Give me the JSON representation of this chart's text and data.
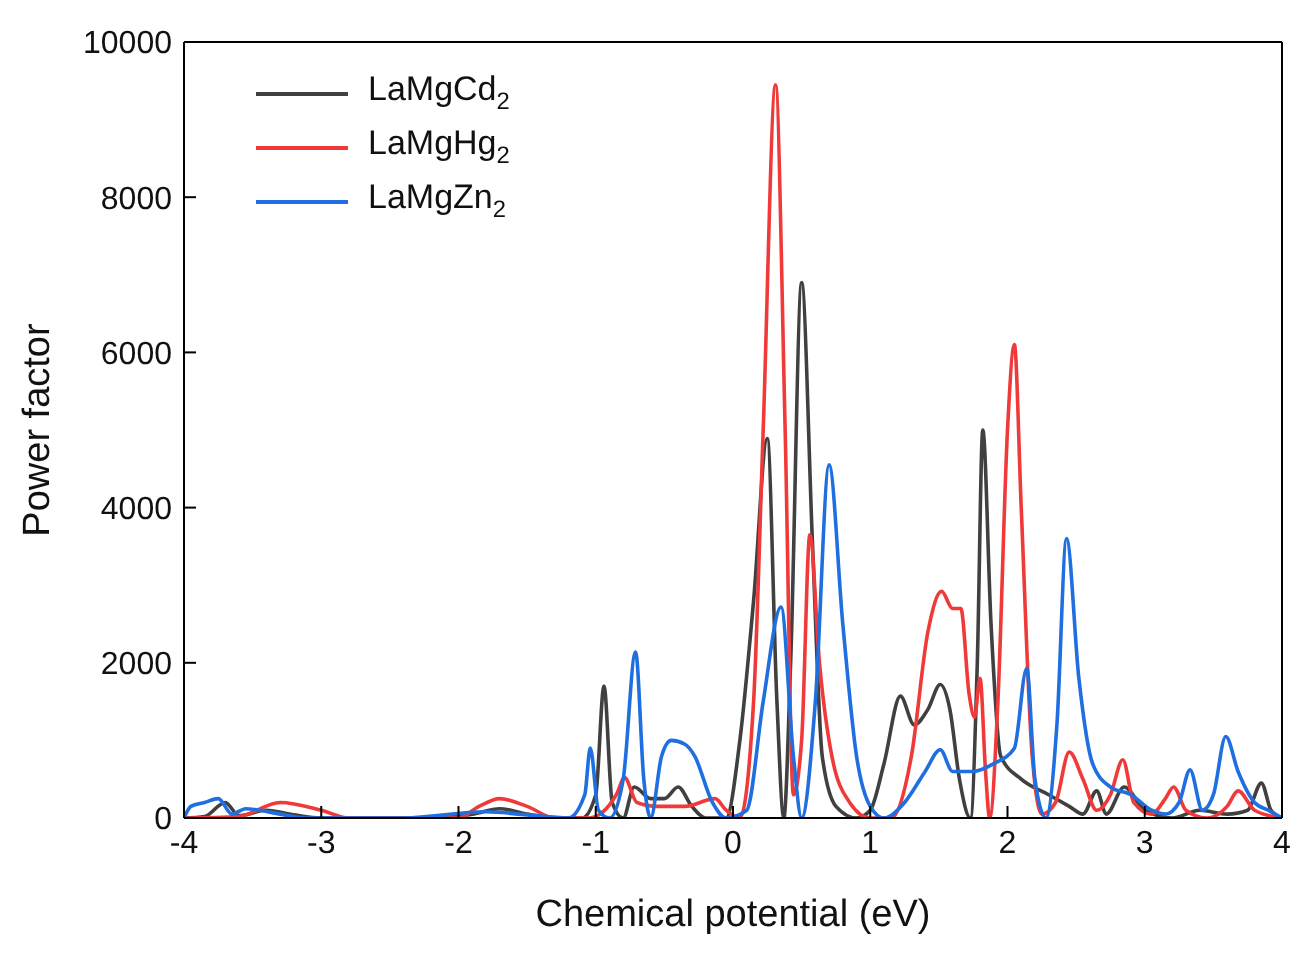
{
  "chart_data": {
    "type": "line",
    "xlabel": "Chemical potential  (eV)",
    "ylabel": "Power factor",
    "xlim": [
      -4,
      4
    ],
    "xticks": [
      -4,
      -3,
      -2,
      -1,
      0,
      1,
      2,
      3,
      4
    ],
    "ylim": [
      0,
      10000
    ],
    "yticks": [
      0,
      2000,
      4000,
      6000,
      8000,
      10000
    ],
    "legend": "top left",
    "marker": "none",
    "line_style": "solid",
    "series": [
      {
        "name": "LaMgCd$_{2}$",
        "color": "#404040",
        "x": [
          -4,
          -3.85,
          -3.7,
          -3.6,
          -3.4,
          -3.2,
          -3,
          -2.2,
          -1.9,
          -1.7,
          -1.5,
          -1.3,
          -1.1,
          -1.0,
          -0.94,
          -0.88,
          -0.8,
          -0.72,
          -0.6,
          -0.5,
          -0.4,
          -0.3,
          -0.2,
          -0.05,
          0.05,
          0.15,
          0.25,
          0.32,
          0.37,
          0.42,
          0.5,
          0.58,
          0.65,
          0.75,
          0.9,
          1.0,
          1.1,
          1.22,
          1.32,
          1.42,
          1.51,
          1.58,
          1.65,
          1.73,
          1.78,
          1.82,
          1.88,
          1.95,
          2.1,
          2.3,
          2.45,
          2.55,
          2.65,
          2.72,
          2.85,
          3.0,
          3.2,
          3.4,
          3.6,
          3.75,
          3.85,
          3.92,
          4
        ],
        "values": [
          0,
          20,
          200,
          30,
          100,
          40,
          0,
          0,
          50,
          120,
          50,
          0,
          0,
          300,
          1700,
          200,
          0,
          400,
          250,
          250,
          400,
          150,
          0,
          0,
          1000,
          2800,
          4890,
          1500,
          0,
          2000,
          6900,
          3500,
          800,
          150,
          0,
          100,
          700,
          1570,
          1200,
          1400,
          1720,
          1400,
          500,
          0,
          2000,
          5000,
          2500,
          800,
          500,
          300,
          150,
          50,
          350,
          50,
          400,
          100,
          0,
          100,
          50,
          100,
          450,
          100,
          0
        ]
      },
      {
        "name": "LaMgHg$_{2}$",
        "color": "#f03a3a",
        "x": [
          -4,
          -3.6,
          -3.3,
          -3,
          -2.8,
          -2,
          -1.85,
          -1.7,
          -1.5,
          -1.3,
          -1.05,
          -0.85,
          -0.79,
          -0.7,
          -0.55,
          -0.35,
          -0.13,
          -0.05,
          0.05,
          0.15,
          0.22,
          0.31,
          0.38,
          0.44,
          0.5,
          0.56,
          0.63,
          0.72,
          0.85,
          1.0,
          1.15,
          1.3,
          1.42,
          1.52,
          1.6,
          1.66,
          1.72,
          1.76,
          1.8,
          1.84,
          1.87,
          1.93,
          2.0,
          2.05,
          2.1,
          2.18,
          2.25,
          2.35,
          2.45,
          2.55,
          2.65,
          2.75,
          2.84,
          2.92,
          3.05,
          3.15,
          3.21,
          3.3,
          3.45,
          3.6,
          3.68,
          3.8,
          4
        ],
        "values": [
          0,
          20,
          200,
          100,
          0,
          0,
          150,
          250,
          150,
          0,
          0,
          300,
          520,
          200,
          150,
          150,
          250,
          100,
          0,
          1500,
          5000,
          9450,
          5000,
          300,
          1000,
          3650,
          2000,
          800,
          200,
          0,
          0,
          800,
          2400,
          2920,
          2700,
          2700,
          1600,
          1300,
          1800,
          600,
          0,
          1500,
          5000,
          6100,
          4000,
          800,
          50,
          200,
          850,
          500,
          100,
          300,
          750,
          200,
          50,
          250,
          400,
          100,
          0,
          150,
          350,
          100,
          0
        ]
      },
      {
        "name": "LaMgZn$_{2}$",
        "color": "#1f6fe0",
        "x": [
          -4,
          -3.95,
          -3.85,
          -3.75,
          -3.65,
          -3.55,
          -3.45,
          -3.3,
          -3.1,
          -2.4,
          -1.8,
          -1.5,
          -1.2,
          -1.08,
          -1.04,
          -0.98,
          -0.9,
          -0.8,
          -0.71,
          -0.65,
          -0.6,
          -0.52,
          -0.45,
          -0.35,
          -0.28,
          -0.15,
          -0.05,
          0.1,
          0.22,
          0.35,
          0.44,
          0.5,
          0.6,
          0.7,
          0.8,
          0.9,
          1.0,
          1.1,
          1.25,
          1.4,
          1.51,
          1.6,
          1.75,
          1.9,
          2.05,
          2.14,
          2.2,
          2.28,
          2.36,
          2.43,
          2.52,
          2.62,
          2.75,
          2.9,
          3.05,
          3.15,
          3.25,
          3.33,
          3.42,
          3.5,
          3.59,
          3.68,
          3.8,
          3.9,
          4
        ],
        "values": [
          0,
          150,
          200,
          250,
          50,
          120,
          100,
          50,
          0,
          0,
          80,
          40,
          0,
          300,
          900,
          100,
          0,
          500,
          2140,
          500,
          0,
          800,
          1000,
          950,
          800,
          200,
          0,
          100,
          1500,
          2720,
          800,
          0,
          1500,
          4550,
          2500,
          800,
          150,
          0,
          200,
          600,
          880,
          600,
          600,
          700,
          900,
          1930,
          500,
          0,
          1200,
          3600,
          1800,
          700,
          400,
          300,
          100,
          50,
          200,
          620,
          100,
          300,
          1050,
          600,
          200,
          100,
          0
        ]
      }
    ]
  }
}
